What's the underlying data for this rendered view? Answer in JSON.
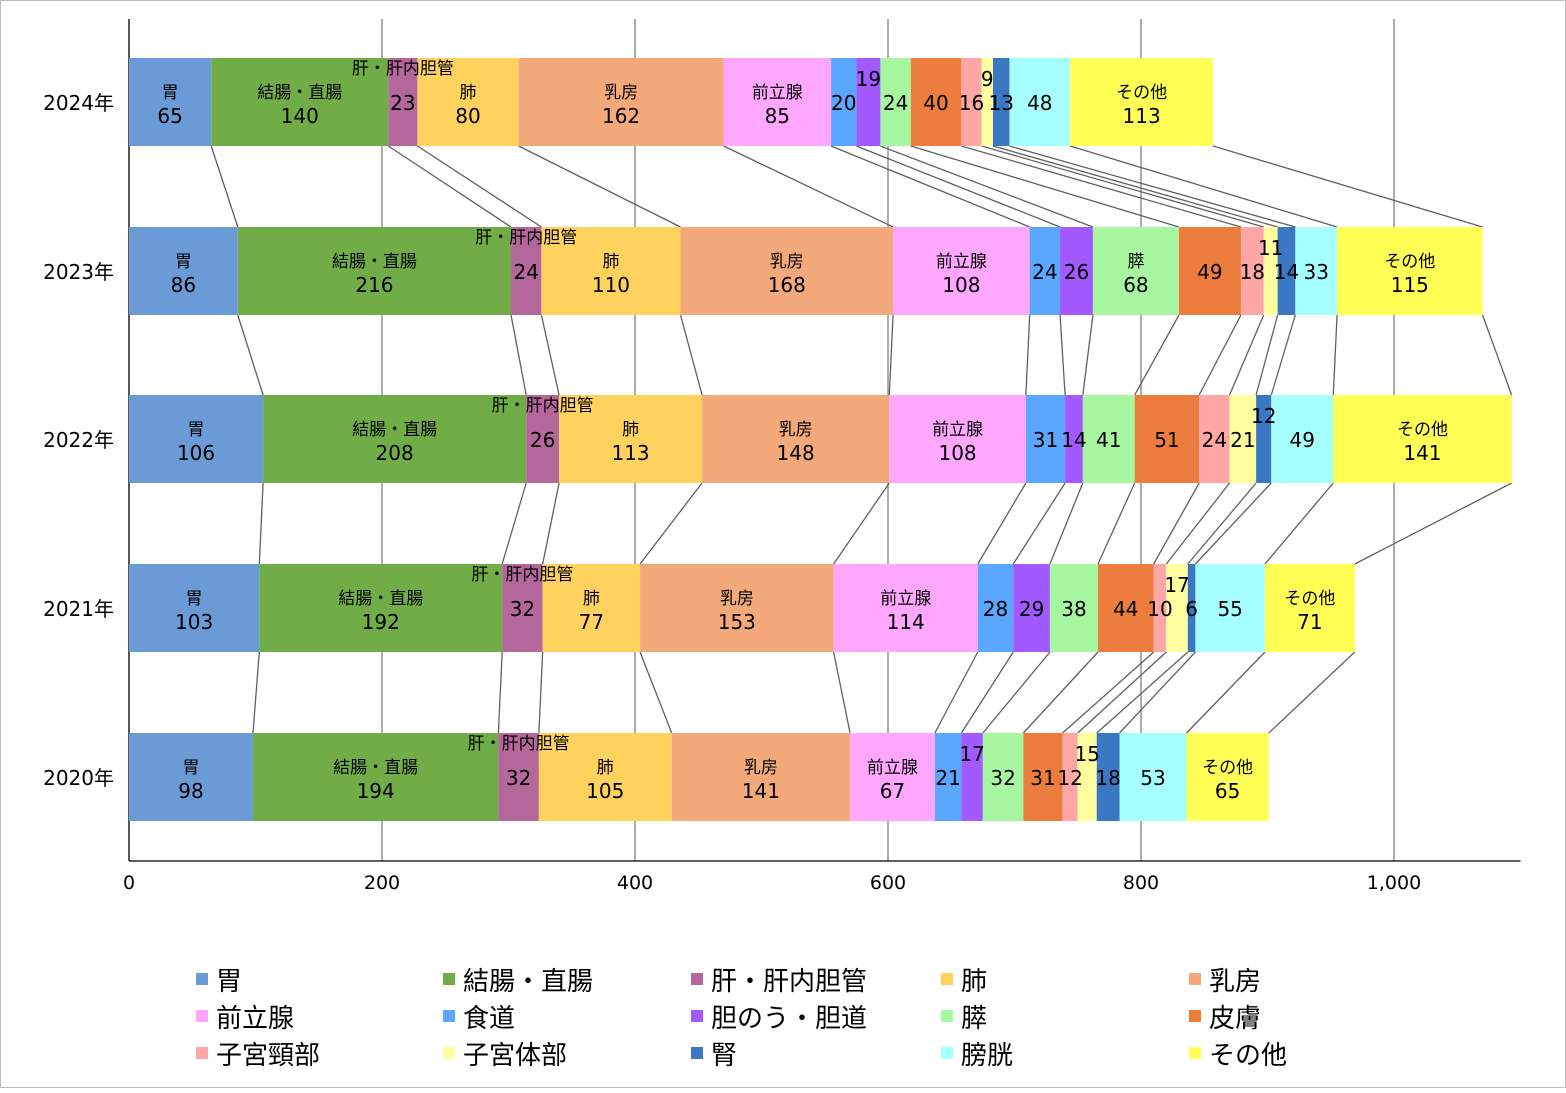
{
  "chart_data": {
    "type": "bar",
    "orientation": "horizontal",
    "stacked": true,
    "title": "",
    "xlabel": "",
    "ylabel": "",
    "xlim": [
      0,
      1100
    ],
    "xticks": [
      "0",
      "200",
      "400",
      "600",
      "800",
      "1,000"
    ],
    "grid": true,
    "legend_position": "bottom",
    "categories": [
      "2024年",
      "2023年",
      "2022年",
      "2021年",
      "2020年"
    ],
    "series": [
      {
        "name": "胃",
        "color": "#6a9bd6",
        "values": [
          65,
          86,
          106,
          103,
          98
        ]
      },
      {
        "name": "結腸・直腸",
        "color": "#70ad47",
        "values": [
          140,
          216,
          208,
          192,
          194
        ]
      },
      {
        "name": "肝・肝内胆管",
        "color": "#b4679a",
        "values": [
          23,
          24,
          26,
          32,
          32
        ]
      },
      {
        "name": "肺",
        "color": "#ffd25e",
        "values": [
          80,
          110,
          113,
          77,
          105
        ]
      },
      {
        "name": "乳房",
        "color": "#f4a97a",
        "values": [
          162,
          168,
          148,
          153,
          141
        ]
      },
      {
        "name": "前立腺",
        "color": "#ffa6ff",
        "values": [
          85,
          108,
          108,
          114,
          67
        ]
      },
      {
        "name": "食道",
        "color": "#5aa7ff",
        "values": [
          20,
          24,
          31,
          28,
          21
        ]
      },
      {
        "name": "胆のう・胆道",
        "color": "#a259ff",
        "values": [
          19,
          26,
          14,
          29,
          17
        ]
      },
      {
        "name": "膵",
        "color": "#a6f7a0",
        "values": [
          24,
          68,
          41,
          38,
          32
        ]
      },
      {
        "name": "皮膚",
        "color": "#ed7d3c",
        "values": [
          40,
          49,
          51,
          44,
          31
        ]
      },
      {
        "name": "子宮頸部",
        "color": "#ffa6a6",
        "values": [
          16,
          18,
          24,
          10,
          12
        ]
      },
      {
        "name": "子宮体部",
        "color": "#ffffa0",
        "values": [
          9,
          11,
          21,
          17,
          15
        ]
      },
      {
        "name": "腎",
        "color": "#3a78c4",
        "values": [
          13,
          14,
          12,
          6,
          18
        ]
      },
      {
        "name": "膀胱",
        "color": "#a6ffff",
        "values": [
          48,
          33,
          49,
          55,
          53
        ]
      },
      {
        "name": "その他",
        "color": "#ffff55",
        "values": [
          113,
          115,
          141,
          71,
          65
        ]
      }
    ]
  }
}
